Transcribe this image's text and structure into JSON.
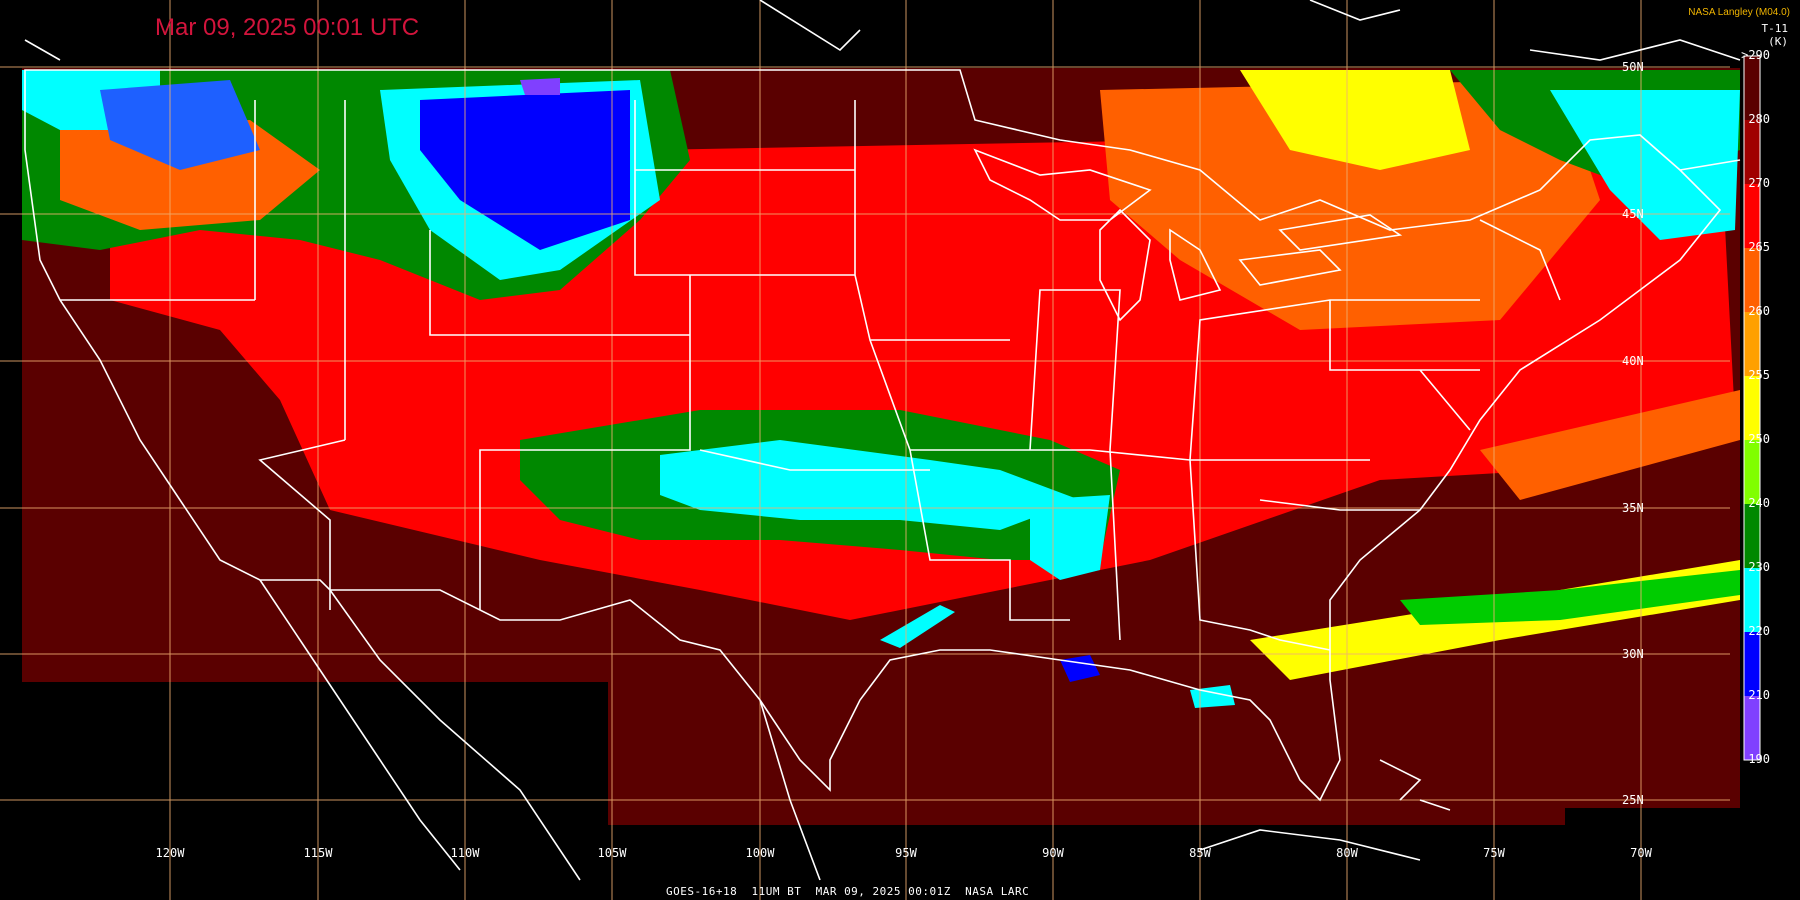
{
  "header": {
    "title": "Mar 09, 2025 00:01 UTC",
    "credit": "NASA Langley (M04.0)",
    "band_label": "T-11",
    "units_label": "(K)"
  },
  "footer": {
    "caption": "GOES-16+18  11UM BT  MAR 09, 2025 00:01Z  NASA LARC"
  },
  "grid": {
    "longitudes": [
      "120W",
      "115W",
      "110W",
      "105W",
      "100W",
      "95W",
      "90W",
      "85W",
      "80W",
      "75W",
      "70W"
    ],
    "latitudes": [
      "50N",
      "45N",
      "40N",
      "35N",
      "30N",
      "25N"
    ]
  },
  "colorbar": {
    "labels": [
      ">290",
      "280",
      "270",
      "265",
      "260",
      "255",
      "250",
      "240",
      "230",
      "220",
      "210",
      "190"
    ],
    "colors": [
      "#5a0000",
      "#a00000",
      "#ff0000",
      "#ff6000",
      "#ffa000",
      "#ffff00",
      "#80ff00",
      "#008800",
      "#00ffff",
      "#0000ff",
      "#8040ff"
    ]
  },
  "palette": {
    "background": "#000000",
    "warm_ground": "#5a0000",
    "clear_land": "#ff0000",
    "cloud_orange": "#ff6000",
    "cloud_yellow": "#ffff00",
    "cloud_green": "#008800",
    "cloud_cyan": "#00ffff",
    "cloud_blue": "#0000ff",
    "cloud_violet": "#8040ff",
    "grid_line": "#f0b070",
    "outline": "#ffffff",
    "title_color": "#d2143c",
    "credit_color": "#f0b400"
  }
}
